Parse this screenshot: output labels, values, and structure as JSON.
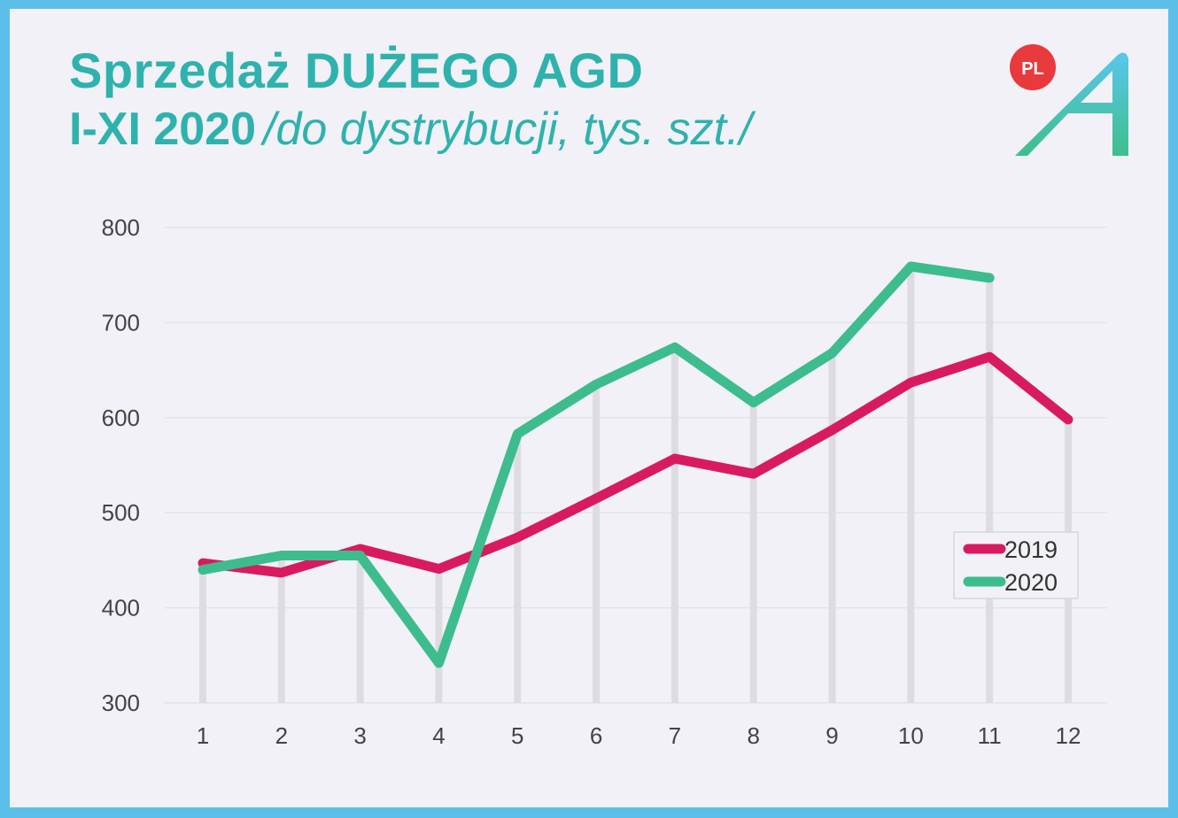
{
  "header": {
    "title": "Sprzedaż DUŻEGO AGD",
    "period": "I-XI 2020",
    "unit_note": "/do dystrybucji, tys. szt./",
    "badge": "PL"
  },
  "colors": {
    "frame": "#5bbfea",
    "background": "#f1f1f7",
    "title": "#2fb2ad",
    "series_2019": "#d81b5f",
    "series_2020": "#3dbc8e",
    "badge": "#e8393c"
  },
  "logo": {
    "icon": "letter-a-logo"
  },
  "chart_data": {
    "type": "line",
    "x": [
      1,
      2,
      3,
      4,
      5,
      6,
      7,
      8,
      9,
      10,
      11,
      12
    ],
    "ylim": [
      300,
      800
    ],
    "yticks": [
      300,
      400,
      500,
      600,
      700,
      800
    ],
    "grid": true,
    "legend_position": "bottom-right",
    "series": [
      {
        "name": "2019",
        "color": "#d81b5f",
        "values": [
          447,
          437,
          462,
          441,
          474,
          515,
          557,
          541,
          587,
          637,
          664,
          598
        ]
      },
      {
        "name": "2020",
        "color": "#3dbc8e",
        "values": [
          440,
          455,
          455,
          342,
          583,
          635,
          674,
          616,
          668,
          759,
          747,
          null
        ]
      }
    ]
  }
}
